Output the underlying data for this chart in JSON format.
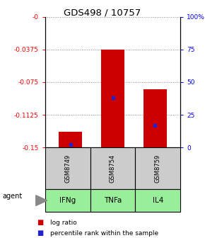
{
  "title": "GDS498 / 10757",
  "samples": [
    "GSM8749",
    "GSM8754",
    "GSM8759"
  ],
  "agents": [
    "IFNg",
    "TNFa",
    "IL4"
  ],
  "log_ratios": [
    -0.132,
    -0.038,
    -0.083
  ],
  "percentile_ranks": [
    2.5,
    38.0,
    17.0
  ],
  "bar_bottom": -0.15,
  "bar_color": "#cc0000",
  "blue_color": "#2222cc",
  "ylim_left": [
    -0.15,
    0.0
  ],
  "yticks_left": [
    0,
    -0.0375,
    -0.075,
    -0.1125,
    -0.15
  ],
  "ytick_labels_left": [
    "-0",
    "-0.0375",
    "-0.075",
    "-0.1125",
    "-0.15"
  ],
  "ylim_right": [
    0,
    100
  ],
  "yticks_right": [
    0,
    25,
    50,
    75,
    100
  ],
  "ytick_labels_right": [
    "0",
    "25",
    "50",
    "75",
    "100%"
  ],
  "gray_color": "#cccccc",
  "green_color": "#99ee99",
  "legend_log_ratio": "log ratio",
  "legend_percentile": "percentile rank within the sample",
  "agent_label": "agent"
}
